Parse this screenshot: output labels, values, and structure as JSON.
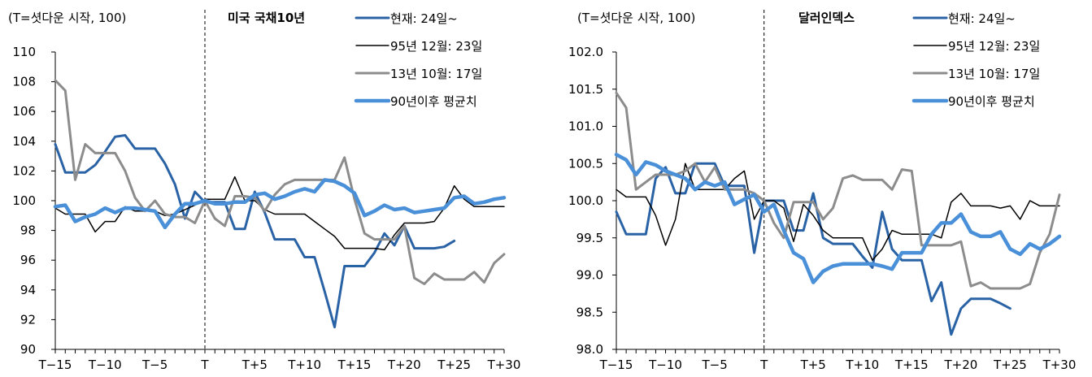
{
  "chart_data": [
    {
      "type": "line",
      "title": "미국 국채10년",
      "note": "(T=셧다운 시작, 100)",
      "xlabel": "",
      "ylabel": "",
      "x": [
        "T-15",
        "T-14",
        "T-13",
        "T-12",
        "T-11",
        "T-10",
        "T-9",
        "T-8",
        "T-7",
        "T-6",
        "T-5",
        "T-4",
        "T-3",
        "T-2",
        "T-1",
        "T",
        "T+1",
        "T+2",
        "T+3",
        "T+4",
        "T+5",
        "T+6",
        "T+7",
        "T+8",
        "T+9",
        "T+10",
        "T+11",
        "T+12",
        "T+13",
        "T+14",
        "T+15",
        "T+16",
        "T+17",
        "T+18",
        "T+19",
        "T+20",
        "T+21",
        "T+22",
        "T+23",
        "T+24",
        "T+25",
        "T+26",
        "T+27",
        "T+28",
        "T+29",
        "T+30"
      ],
      "xticks": [
        "T−15",
        "T−10",
        "T−5",
        "T",
        "T+5",
        "T+10",
        "T+15",
        "T+20",
        "T+25",
        "T+30"
      ],
      "ylim": [
        90,
        110
      ],
      "yticks": [
        "90",
        "92",
        "94",
        "96",
        "98",
        "100",
        "102",
        "104",
        "106",
        "108",
        "110"
      ],
      "marker_x": "T",
      "series": [
        {
          "name": "현재: 24일~",
          "color": "#2a62a6",
          "width": 3,
          "values": [
            103.8,
            101.9,
            101.9,
            101.9,
            102.4,
            103.3,
            104.3,
            104.4,
            103.5,
            103.5,
            103.5,
            102.5,
            101.1,
            98.8,
            100.6,
            99.9,
            99.9,
            99.9,
            98.1,
            98.1,
            100.6,
            99.2,
            97.4,
            97.4,
            97.4,
            96.2,
            96.2,
            93.9,
            91.5,
            95.6,
            95.6,
            95.6,
            96.5,
            97.8,
            97.0,
            98.3,
            96.8,
            96.8,
            96.8,
            96.9,
            97.3,
            null,
            null,
            null,
            null,
            null
          ]
        },
        {
          "name": "95년 12월: 23일",
          "color": "#000000",
          "width": 1.5,
          "values": [
            99.5,
            99.1,
            99.1,
            99.1,
            97.9,
            98.6,
            98.6,
            99.6,
            99.3,
            99.3,
            99.3,
            99.0,
            99.1,
            99.4,
            99.7,
            100.1,
            100.1,
            100.1,
            101.6,
            100.0,
            100.0,
            99.4,
            99.1,
            99.1,
            99.1,
            99.1,
            98.6,
            98.1,
            97.6,
            96.8,
            96.8,
            96.8,
            96.8,
            96.7,
            97.7,
            98.5,
            98.5,
            98.5,
            98.6,
            99.5,
            101.0,
            100.1,
            99.6,
            99.6,
            99.6,
            99.6
          ]
        },
        {
          "name": "13년 10월: 17일",
          "color": "#8c8c8c",
          "width": 3,
          "values": [
            108.1,
            107.4,
            101.4,
            103.8,
            103.2,
            103.2,
            103.2,
            102.0,
            100.2,
            99.3,
            100.0,
            99.1,
            98.9,
            98.9,
            98.5,
            100.0,
            98.8,
            98.3,
            100.3,
            100.3,
            100.2,
            99.3,
            100.4,
            101.1,
            101.4,
            101.4,
            101.4,
            101.4,
            101.4,
            102.9,
            100.1,
            97.8,
            97.4,
            97.4,
            97.4,
            98.3,
            94.8,
            94.4,
            95.1,
            94.7,
            94.7,
            94.7,
            95.2,
            94.5,
            95.8,
            96.4
          ]
        },
        {
          "name": "90년이후 평균치",
          "color": "#4a90d9",
          "width": 4.5,
          "values": [
            99.6,
            99.7,
            98.6,
            98.9,
            99.1,
            99.5,
            99.2,
            99.5,
            99.5,
            99.4,
            99.3,
            98.2,
            99.1,
            99.8,
            99.8,
            100.0,
            99.8,
            99.8,
            99.9,
            99.9,
            100.4,
            100.5,
            100.1,
            100.3,
            100.6,
            100.8,
            100.6,
            101.4,
            101.3,
            101.0,
            100.5,
            99.0,
            99.3,
            99.7,
            99.4,
            99.5,
            99.2,
            99.3,
            99.4,
            99.5,
            100.2,
            100.3,
            99.8,
            99.9,
            100.1,
            100.2
          ]
        }
      ]
    },
    {
      "type": "line",
      "title": "달러인덱스",
      "note": "(T=셧다운 시작, 100)",
      "xlabel": "",
      "ylabel": "",
      "x": [
        "T-15",
        "T-14",
        "T-13",
        "T-12",
        "T-11",
        "T-10",
        "T-9",
        "T-8",
        "T-7",
        "T-6",
        "T-5",
        "T-4",
        "T-3",
        "T-2",
        "T-1",
        "T",
        "T+1",
        "T+2",
        "T+3",
        "T+4",
        "T+5",
        "T+6",
        "T+7",
        "T+8",
        "T+9",
        "T+10",
        "T+11",
        "T+12",
        "T+13",
        "T+14",
        "T+15",
        "T+16",
        "T+17",
        "T+18",
        "T+19",
        "T+20",
        "T+21",
        "T+22",
        "T+23",
        "T+24",
        "T+25",
        "T+26",
        "T+27",
        "T+28",
        "T+29",
        "T+30"
      ],
      "xticks": [
        "T−15",
        "T−10",
        "T−5",
        "T",
        "T+5",
        "T+10",
        "T+15",
        "T+20",
        "T+25",
        "T+30"
      ],
      "ylim": [
        98.0,
        102.0
      ],
      "yticks": [
        "98.0",
        "98.5",
        "99.0",
        "99.5",
        "100.0",
        "100.5",
        "101.0",
        "101.5",
        "102.0"
      ],
      "marker_x": "T",
      "series": [
        {
          "name": "현재: 24일~",
          "color": "#2a62a6",
          "width": 3,
          "values": [
            99.85,
            99.55,
            99.55,
            99.55,
            100.3,
            100.45,
            100.1,
            100.1,
            100.5,
            100.5,
            100.5,
            100.2,
            100.2,
            100.2,
            99.3,
            100.0,
            100.0,
            100.0,
            99.6,
            99.6,
            100.1,
            99.5,
            99.42,
            99.42,
            99.42,
            99.25,
            99.1,
            99.85,
            99.35,
            99.2,
            99.2,
            99.2,
            98.65,
            98.9,
            98.2,
            98.55,
            98.68,
            98.68,
            98.68,
            98.62,
            98.55,
            null,
            null,
            null,
            null,
            null
          ]
        },
        {
          "name": "95년 12월: 23일",
          "color": "#000000",
          "width": 1.5,
          "values": [
            100.15,
            100.05,
            100.05,
            100.05,
            99.8,
            99.4,
            99.75,
            100.5,
            100.15,
            100.15,
            100.15,
            100.15,
            100.3,
            100.4,
            99.75,
            100.0,
            100.0,
            99.9,
            99.45,
            99.95,
            99.8,
            99.6,
            99.5,
            99.5,
            99.5,
            99.5,
            99.2,
            99.35,
            99.6,
            99.55,
            99.55,
            99.55,
            99.55,
            99.5,
            99.98,
            100.1,
            99.93,
            99.93,
            99.93,
            99.9,
            99.93,
            99.75,
            100.0,
            99.93,
            99.93,
            99.93
          ]
        },
        {
          "name": "13년 10월: 17일",
          "color": "#8c8c8c",
          "width": 3,
          "values": [
            101.45,
            101.25,
            100.15,
            100.25,
            100.35,
            100.35,
            100.35,
            100.4,
            100.5,
            100.25,
            100.45,
            100.15,
            100.15,
            100.15,
            100.1,
            100.0,
            99.7,
            99.5,
            99.98,
            99.98,
            99.98,
            99.75,
            99.9,
            100.3,
            100.34,
            100.28,
            100.28,
            100.28,
            100.15,
            100.42,
            100.4,
            99.4,
            99.4,
            99.4,
            99.4,
            99.45,
            98.85,
            98.9,
            98.82,
            98.82,
            98.82,
            98.82,
            98.88,
            99.3,
            99.55,
            100.08
          ]
        },
        {
          "name": "90년이후 평균치",
          "color": "#4a90d9",
          "width": 4.5,
          "values": [
            100.62,
            100.55,
            100.35,
            100.52,
            100.48,
            100.4,
            100.35,
            100.3,
            100.15,
            100.25,
            100.2,
            100.25,
            99.95,
            100.02,
            100.08,
            99.85,
            99.95,
            99.6,
            99.3,
            99.22,
            98.9,
            99.05,
            99.12,
            99.15,
            99.15,
            99.15,
            99.15,
            99.12,
            99.08,
            99.3,
            99.3,
            99.3,
            99.55,
            99.7,
            99.7,
            99.82,
            99.58,
            99.52,
            99.52,
            99.58,
            99.35,
            99.28,
            99.42,
            99.35,
            99.42,
            99.52
          ]
        }
      ]
    }
  ]
}
